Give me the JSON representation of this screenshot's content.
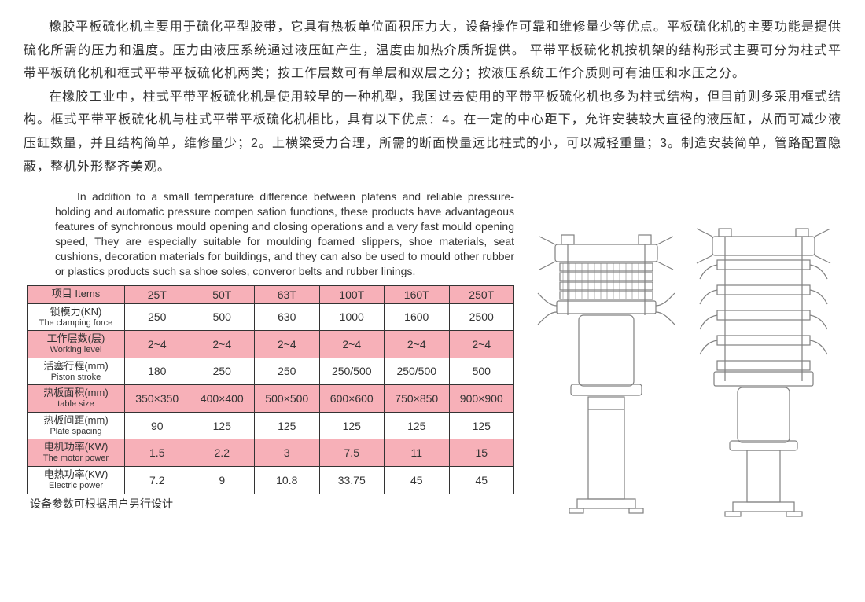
{
  "chinese": {
    "p1": "橡胶平板硫化机主要用于硫化平型胶带，它具有热板单位面积压力大，设备操作可靠和维修量少等优点。平板硫化机的主要功能是提供硫化所需的压力和温度。压力由液压系统通过液压缸产生，温度由加热介质所提供。 平带平板硫化机按机架的结构形式主要可分为柱式平带平板硫化机和框式平带平板硫化机两类；按工作层数可有单层和双层之分；按液压系统工作介质则可有油压和水压之分。",
    "p2": "在橡胶工业中，柱式平带平板硫化机是使用较早的一种机型，我国过去使用的平带平板硫化机也多为柱式结构，但目前则多采用框式结构。框式平带平板硫化机与柱式平带平板硫化机相比，具有以下优点：4。在一定的中心距下，允许安装较大直径的液压缸，从而可减少液压缸数量，并且结构简单，维修量少；2。上横梁受力合理，所需的断面模量远比柱式的小，可以减轻重量；3。制造安装简单，管路配置隐蔽，整机外形整齐美观。"
  },
  "english": "In addition to a small temperature difference between platens and reliable pressure-holding and automatic pressure compen sation functions, these products have advantageous features of synchronous mould opening and closing operations and a very fast mould opening speed, They are especially suitable for moulding foamed slippers, shoe materials, seat cushions, decoration materials for buildings, and they can also be used to mould other rubber or plastics products such sa shoe soles, converor belts and rubber linings.",
  "table": {
    "header_label": "项目 Items",
    "columns": [
      "25T",
      "50T",
      "63T",
      "100T",
      "160T",
      "250T"
    ],
    "rows": [
      {
        "label_cn": "锁模力(KN)",
        "label_en": "The clamping force",
        "pink": false,
        "vals": [
          "250",
          "500",
          "630",
          "1000",
          "1600",
          "2500"
        ]
      },
      {
        "label_cn": "工作层数(层)",
        "label_en": "Working level",
        "pink": true,
        "vals": [
          "2~4",
          "2~4",
          "2~4",
          "2~4",
          "2~4",
          "2~4"
        ]
      },
      {
        "label_cn": "活塞行程(mm)",
        "label_en": "Piston stroke",
        "pink": false,
        "vals": [
          "180",
          "250",
          "250",
          "250/500",
          "250/500",
          "500"
        ]
      },
      {
        "label_cn": "热板面积(mm)",
        "label_en": "table size",
        "pink": true,
        "vals": [
          "350×350",
          "400×400",
          "500×500",
          "600×600",
          "750×850",
          "900×900"
        ]
      },
      {
        "label_cn": "热板间距(mm)",
        "label_en": "Plate spacing",
        "pink": false,
        "vals": [
          "90",
          "125",
          "125",
          "125",
          "125",
          "125"
        ]
      },
      {
        "label_cn": "电机功率(KW)",
        "label_en": "The motor power",
        "pink": true,
        "vals": [
          "1.5",
          "2.2",
          "3",
          "7.5",
          "11",
          "15"
        ]
      },
      {
        "label_cn": "电热功率(KW)",
        "label_en": "Electric power",
        "pink": false,
        "vals": [
          "7.2",
          "9",
          "10.8",
          "33.75",
          "45",
          "45"
        ]
      }
    ]
  },
  "footnote": "设备参数可根据用户另行设计",
  "colors": {
    "header_bg": "#f7b0b8",
    "border": "#333333",
    "text": "#333333",
    "diagram_stroke": "#808080"
  }
}
